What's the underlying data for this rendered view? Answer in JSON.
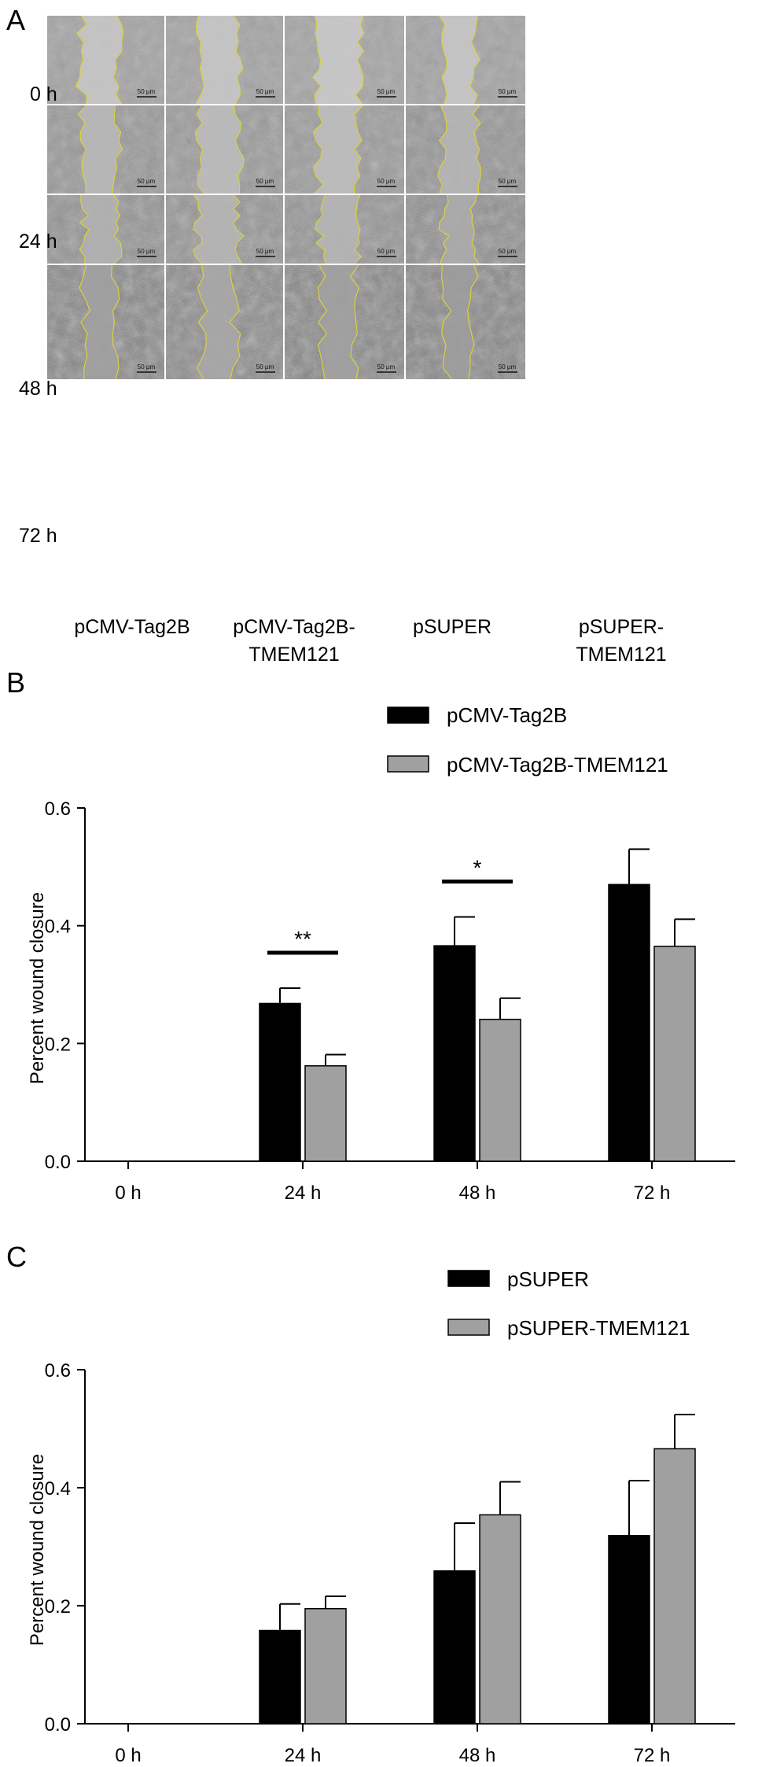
{
  "panels": {
    "a": {
      "letter": "A",
      "time_labels": [
        "0 h",
        "24 h",
        "48 h",
        "72 h"
      ],
      "group_labels": [
        [
          "pCMV-Tag2B"
        ],
        [
          "pCMV-Tag2B-",
          "TMEM121"
        ],
        [
          "pSUPER"
        ],
        [
          "pSUPER-",
          "TMEM121"
        ]
      ],
      "scale_bar_label": "50 µm",
      "wound_edge_color": "#d9d23a",
      "gap_widths": [
        [
          0.32,
          0.32,
          0.34,
          0.26
        ],
        [
          0.3,
          0.34,
          0.34,
          0.3
        ],
        [
          0.28,
          0.34,
          0.3,
          0.26
        ],
        [
          0.26,
          0.28,
          0.28,
          0.22
        ]
      ],
      "cell_density": [
        [
          0.15,
          0.15,
          0.12,
          0.14
        ],
        [
          0.35,
          0.3,
          0.28,
          0.4
        ],
        [
          0.45,
          0.4,
          0.4,
          0.55
        ],
        [
          0.7,
          0.6,
          0.7,
          0.75
        ]
      ]
    },
    "b": {
      "letter": "B"
    },
    "c": {
      "letter": "C"
    }
  },
  "chart_data": [
    {
      "type": "bar",
      "title": "",
      "ylabel": "Percent wound closure",
      "xlabel": "",
      "categories": [
        "0 h",
        "24 h",
        "48 h",
        "72 h"
      ],
      "ylim": [
        0,
        0.6
      ],
      "yticks": [
        "0.0",
        "0.2",
        "0.4",
        "0.6"
      ],
      "legend_position": "top",
      "series": [
        {
          "name": "pCMV-Tag2B",
          "color": "#000000",
          "values": [
            0,
            0.268,
            0.366,
            0.47
          ],
          "errors": [
            0,
            0.026,
            0.049,
            0.06
          ]
        },
        {
          "name": "pCMV-Tag2B-TMEM121",
          "color": "#a0a0a0",
          "values": [
            0,
            0.162,
            0.241,
            0.365
          ],
          "errors": [
            0,
            0.019,
            0.036,
            0.046
          ]
        }
      ],
      "significance": [
        {
          "category": "24 h",
          "label": "**"
        },
        {
          "category": "48 h",
          "label": "*"
        }
      ]
    },
    {
      "type": "bar",
      "title": "",
      "ylabel": "Percent wound closure",
      "xlabel": "",
      "categories": [
        "0 h",
        "24 h",
        "48 h",
        "72 h"
      ],
      "ylim": [
        0,
        0.6
      ],
      "yticks": [
        "0.0",
        "0.2",
        "0.4",
        "0.6"
      ],
      "legend_position": "top",
      "series": [
        {
          "name": "pSUPER",
          "color": "#000000",
          "values": [
            0,
            0.158,
            0.259,
            0.319
          ],
          "errors": [
            0,
            0.045,
            0.081,
            0.093
          ]
        },
        {
          "name": "pSUPER-TMEM121",
          "color": "#a0a0a0",
          "values": [
            0,
            0.195,
            0.354,
            0.466
          ],
          "errors": [
            0,
            0.021,
            0.056,
            0.058
          ]
        }
      ],
      "significance": []
    }
  ]
}
